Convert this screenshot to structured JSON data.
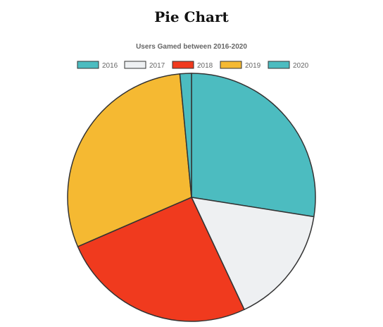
{
  "page": {
    "heading": "Pie Chart"
  },
  "chart_data": {
    "type": "pie",
    "title": "Users Gamed between 2016-2020",
    "legend_position": "top",
    "categories": [
      "2016",
      "2017",
      "2018",
      "2019",
      "2020"
    ],
    "values": [
      27.5,
      15.5,
      25.5,
      30,
      1.5
    ],
    "colors": [
      "#4cbcc0",
      "#eef0f2",
      "#f03a1e",
      "#f5b932",
      "#4cbcc0"
    ],
    "border_color": "#333333"
  }
}
